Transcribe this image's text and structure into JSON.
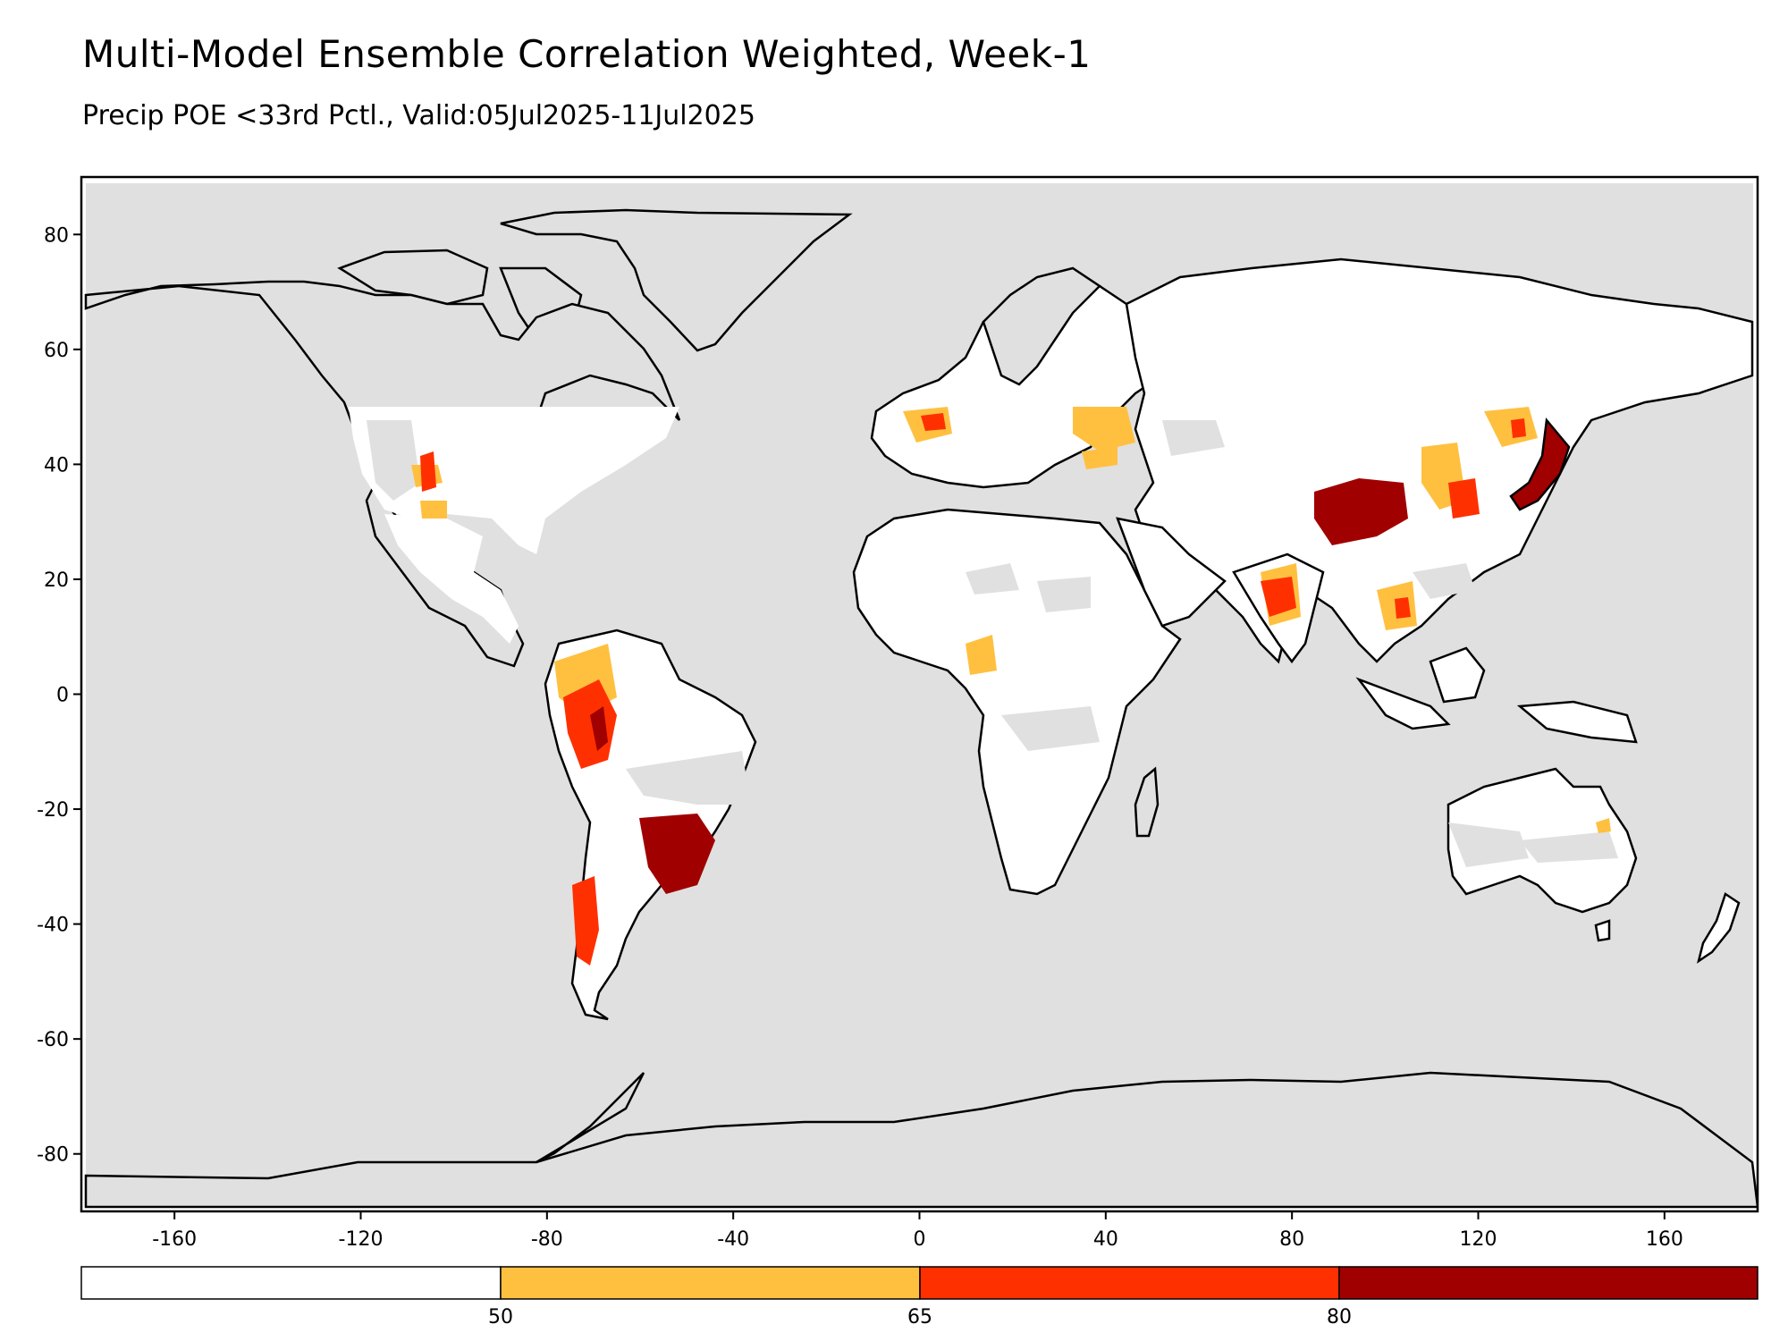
{
  "title": "Multi-Model Ensemble Correlation Weighted, Week-1",
  "subtitle": "Precip POE <33rd Pctl., Valid:05Jul2025-11Jul2025",
  "colors": {
    "ocean": "#e0e0e0",
    "land": "#ffffff",
    "outline": "#000000",
    "c50": "#ffc040",
    "c65": "#ff3000",
    "c80": "#a00000"
  },
  "x_ticks": [
    "-160",
    "-120",
    "-80",
    "-40",
    "0",
    "40",
    "80",
    "120",
    "160"
  ],
  "y_ticks": [
    "80",
    "60",
    "40",
    "20",
    "0",
    "-20",
    "-40",
    "-60",
    "-80"
  ],
  "colorbar": {
    "ticks": [
      "50",
      "65",
      "80"
    ],
    "bins": [
      "below-50",
      "50-65",
      "65-80",
      "above-80"
    ]
  },
  "chart_data": {
    "type": "heatmap",
    "title": "Multi-Model Ensemble Correlation Weighted, Week-1",
    "subtitle": "Precip POE <33rd Pctl., Valid:05Jul2025-11Jul2025",
    "xlabel": "",
    "ylabel": "",
    "xlim": [
      -180,
      180
    ],
    "ylim": [
      -90,
      90
    ],
    "x_ticks": [
      -160,
      -120,
      -80,
      -40,
      0,
      40,
      80,
      120,
      160
    ],
    "y_ticks": [
      80,
      60,
      40,
      20,
      0,
      -20,
      -40,
      -60,
      -80
    ],
    "levels": [
      50,
      65,
      80
    ],
    "legend": "bottom",
    "high_probability_regions": [
      {
        "lon": [
          103,
          110
        ],
        "lat": [
          30,
          35
        ],
        "level": 80
      },
      {
        "lon": [
          -60,
          -52
        ],
        "lat": [
          -32,
          -24
        ],
        "level": 80
      },
      {
        "lon": [
          130,
          142
        ],
        "lat": [
          33,
          42
        ],
        "level": 80
      },
      {
        "lon": [
          -76,
          -70
        ],
        "lat": [
          -12,
          -4
        ],
        "level": 65
      },
      {
        "lon": [
          -72,
          -70
        ],
        "lat": [
          -46,
          -36
        ],
        "level": 65
      },
      {
        "lon": [
          115,
          121
        ],
        "lat": [
          28,
          34
        ],
        "level": 65
      },
      {
        "lon": [
          73,
          80
        ],
        "lat": [
          15,
          22
        ],
        "level": 65
      },
      {
        "lon": [
          -106,
          -103
        ],
        "lat": [
          34,
          40
        ],
        "level": 65
      },
      {
        "lon": [
          0,
          10
        ],
        "lat": [
          45,
          50
        ],
        "level": 50
      },
      {
        "lon": [
          40,
          50
        ],
        "lat": [
          43,
          50
        ],
        "level": 50
      },
      {
        "lon": [
          95,
          102
        ],
        "lat": [
          12,
          18
        ],
        "level": 50
      }
    ]
  }
}
